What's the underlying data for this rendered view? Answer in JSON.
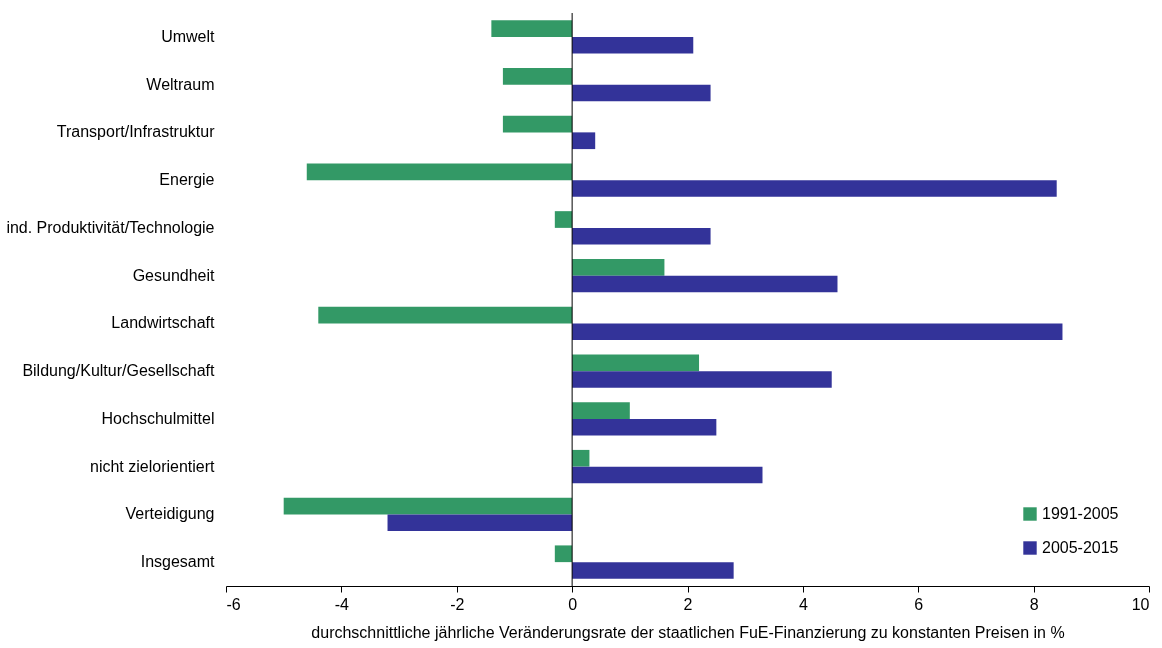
{
  "chart_data": {
    "type": "bar",
    "orientation": "horizontal",
    "xlabel": "durchschnittliche jährliche Veränderungsrate der staatlichen FuE-Finanzierung zu konstanten Preisen in %",
    "categories": [
      "Umwelt",
      "Weltraum",
      "Transport/Infrastruktur",
      "Energie",
      "ind. Produktivität/Technologie",
      "Gesundheit",
      "Landwirtschaft",
      "Bildung/Kultur/Gesellschaft",
      "Hochschulmittel",
      "nicht zielorientiert",
      "Verteidigung",
      "Insgesamt"
    ],
    "series": [
      {
        "name": "1991-2005",
        "color": "#339966",
        "values": [
          -1.4,
          -1.2,
          -1.2,
          -4.6,
          -0.3,
          1.6,
          -4.4,
          2.2,
          1.0,
          0.3,
          -5.0,
          -0.3
        ]
      },
      {
        "name": "2005-2015",
        "color": "#333399",
        "values": [
          2.1,
          2.4,
          0.4,
          8.4,
          2.4,
          4.6,
          8.5,
          4.5,
          2.5,
          3.3,
          -3.2,
          2.8
        ]
      }
    ],
    "xlim": [
      -6,
      10
    ],
    "xticks": [
      -6,
      -4,
      -2,
      0,
      2,
      4,
      6,
      8,
      10
    ],
    "ref_lines": [
      {
        "axis": "x",
        "value": 0,
        "color": "#000000"
      }
    ],
    "grid": false,
    "legend": "bottom right"
  }
}
